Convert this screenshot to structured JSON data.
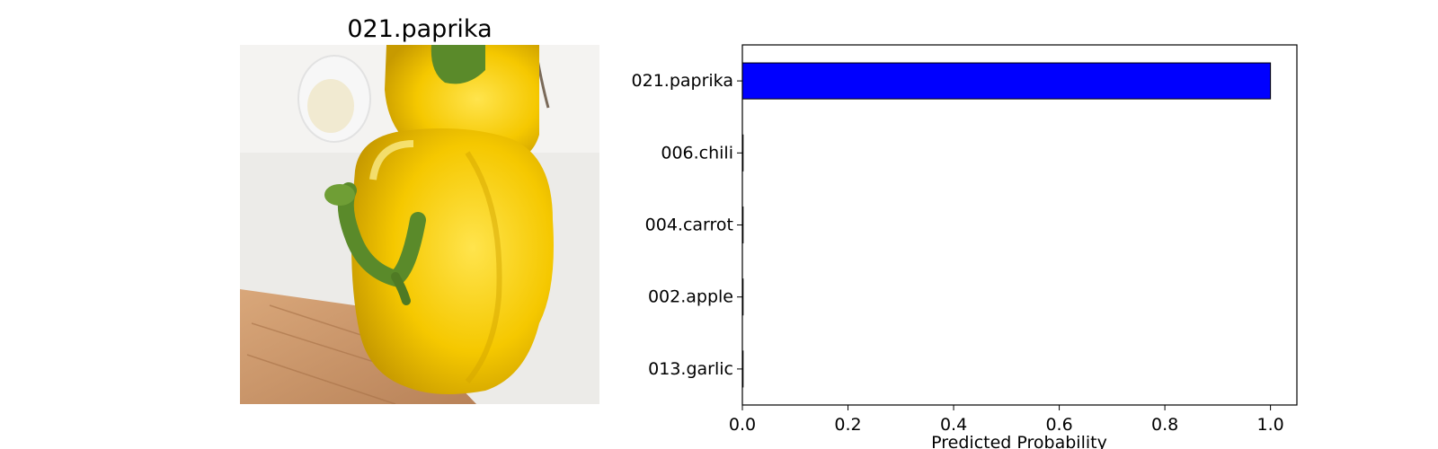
{
  "image_panel": {
    "title": "021.paprika",
    "photo": {
      "subject": "yellow bell pepper",
      "colors": {
        "pepper": "#f5c800",
        "pepper_highlight": "#ffe44d",
        "pepper_shadow": "#c79a00",
        "stem": "#5a8a2a",
        "counter": "#ecebe8",
        "cutting_board": "#c9956a"
      }
    }
  },
  "chart_data": {
    "type": "bar",
    "orientation": "horizontal",
    "categories": [
      "021.paprika",
      "006.chili",
      "004.carrot",
      "002.apple",
      "013.garlic"
    ],
    "values": [
      1.0,
      0.0,
      0.0,
      0.0,
      0.0
    ],
    "xlabel": "Predicted Probability",
    "ylabel": "",
    "xlim": [
      0,
      1.05
    ],
    "xticks": [
      0.0,
      0.2,
      0.4,
      0.6,
      0.8,
      1.0
    ],
    "xtick_labels": [
      "0.0",
      "0.2",
      "0.4",
      "0.6",
      "0.8",
      "1.0"
    ],
    "grid": false,
    "bar_color": "#0000ff",
    "edge_color": "#000000"
  }
}
